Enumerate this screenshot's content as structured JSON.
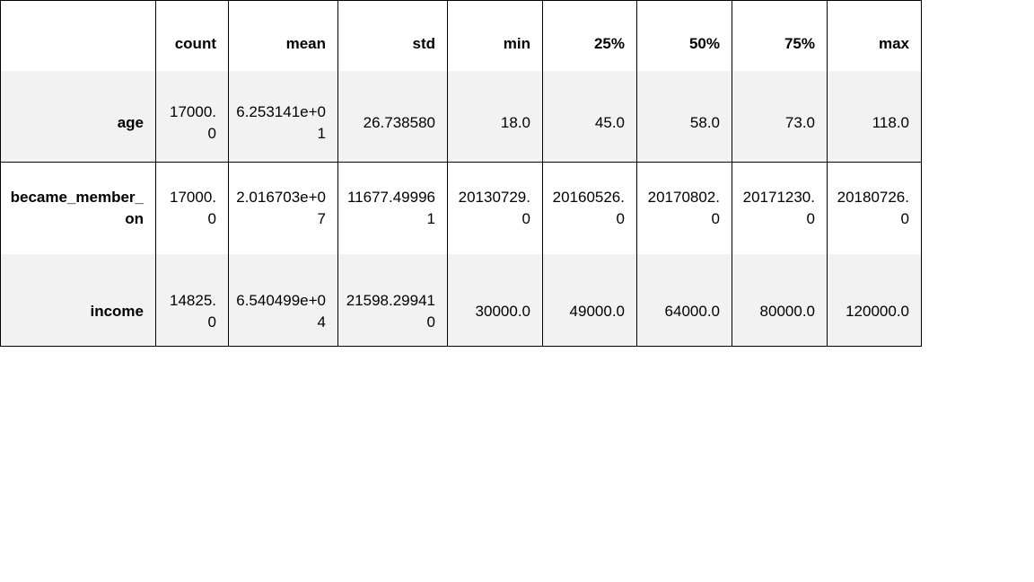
{
  "table": {
    "index_header": "",
    "columns": [
      "count",
      "mean",
      "std",
      "min",
      "25%",
      "50%",
      "75%",
      "max"
    ],
    "rows": [
      {
        "label": "age",
        "values": [
          "17000.0",
          "6.253141e+01",
          "26.738580",
          "18.0",
          "45.0",
          "58.0",
          "73.0",
          "118.0"
        ]
      },
      {
        "label": "became_member_on",
        "values": [
          "17000.0",
          "2.016703e+07",
          "11677.499961",
          "20130729.0",
          "20160526.0",
          "20170802.0",
          "20171230.0",
          "20180726.0"
        ]
      },
      {
        "label": "income",
        "values": [
          "14825.0",
          "6.540499e+04",
          "21598.299410",
          "30000.0",
          "49000.0",
          "64000.0",
          "80000.0",
          "120000.0"
        ]
      }
    ]
  }
}
